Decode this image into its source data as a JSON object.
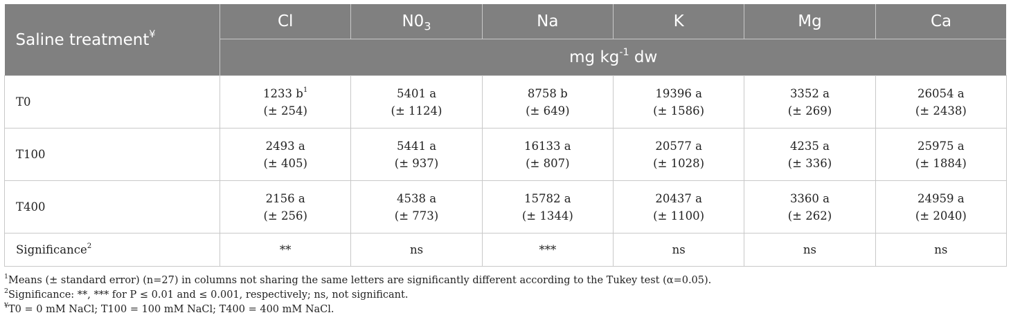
{
  "table": {
    "row_header": "Saline treatment",
    "row_header_mark": "¥",
    "columns": [
      {
        "base": "Cl",
        "sub": ""
      },
      {
        "base": "N0",
        "sub": "3"
      },
      {
        "base": "Na",
        "sub": ""
      },
      {
        "base": "K",
        "sub": ""
      },
      {
        "base": "Mg",
        "sub": ""
      },
      {
        "base": "Ca",
        "sub": ""
      }
    ],
    "unit": {
      "pre": "mg kg",
      "sup": "-1",
      "post": " dw"
    },
    "rows": [
      {
        "label": "T0",
        "cells": [
          {
            "value": "1233 b",
            "mark": "1",
            "se": "(± 254)"
          },
          {
            "value": "5401 a",
            "mark": "",
            "se": "(± 1124)"
          },
          {
            "value": "8758 b",
            "mark": "",
            "se": "(± 649)"
          },
          {
            "value": "19396 a",
            "mark": "",
            "se": "(± 1586)"
          },
          {
            "value": "3352 a",
            "mark": "",
            "se": "(± 269)"
          },
          {
            "value": "26054 a",
            "mark": "",
            "se": "(± 2438)"
          }
        ]
      },
      {
        "label": "T100",
        "cells": [
          {
            "value": "2493 a",
            "mark": "",
            "se": "(± 405)"
          },
          {
            "value": "5441 a",
            "mark": "",
            "se": "(± 937)"
          },
          {
            "value": "16133 a",
            "mark": "",
            "se": "(± 807)"
          },
          {
            "value": "20577 a",
            "mark": "",
            "se": "(± 1028)"
          },
          {
            "value": "4235 a",
            "mark": "",
            "se": "(± 336)"
          },
          {
            "value": "25975 a",
            "mark": "",
            "se": "(± 1884)"
          }
        ]
      },
      {
        "label": "T400",
        "cells": [
          {
            "value": "2156 a",
            "mark": "",
            "se": "(± 256)"
          },
          {
            "value": "4538 a",
            "mark": "",
            "se": "(± 773)"
          },
          {
            "value": "15782 a",
            "mark": "",
            "se": "(± 1344)"
          },
          {
            "value": "20437 a",
            "mark": "",
            "se": "(± 1100)"
          },
          {
            "value": "3360 a",
            "mark": "",
            "se": "(± 262)"
          },
          {
            "value": "24959 a",
            "mark": "",
            "se": "(± 2040)"
          }
        ]
      }
    ],
    "significance": {
      "label": "Significance",
      "mark": "2",
      "values": [
        "**",
        "ns",
        "***",
        "ns",
        "ns",
        "ns"
      ]
    }
  },
  "footnotes": [
    {
      "mark": "1",
      "text": "Means (± standard error) (n=27) in columns not sharing the same letters are significantly different according to the Tukey test (α=0.05)."
    },
    {
      "mark": "2",
      "text": "Significance: **, *** for P ≤ 0.01 and ≤ 0.001, respectively; ns, not significant."
    },
    {
      "mark": "¥",
      "text": "T0 = 0 mM NaCl; T100 = 100 mM NaCl; T400 = 400 mM NaCl."
    }
  ]
}
